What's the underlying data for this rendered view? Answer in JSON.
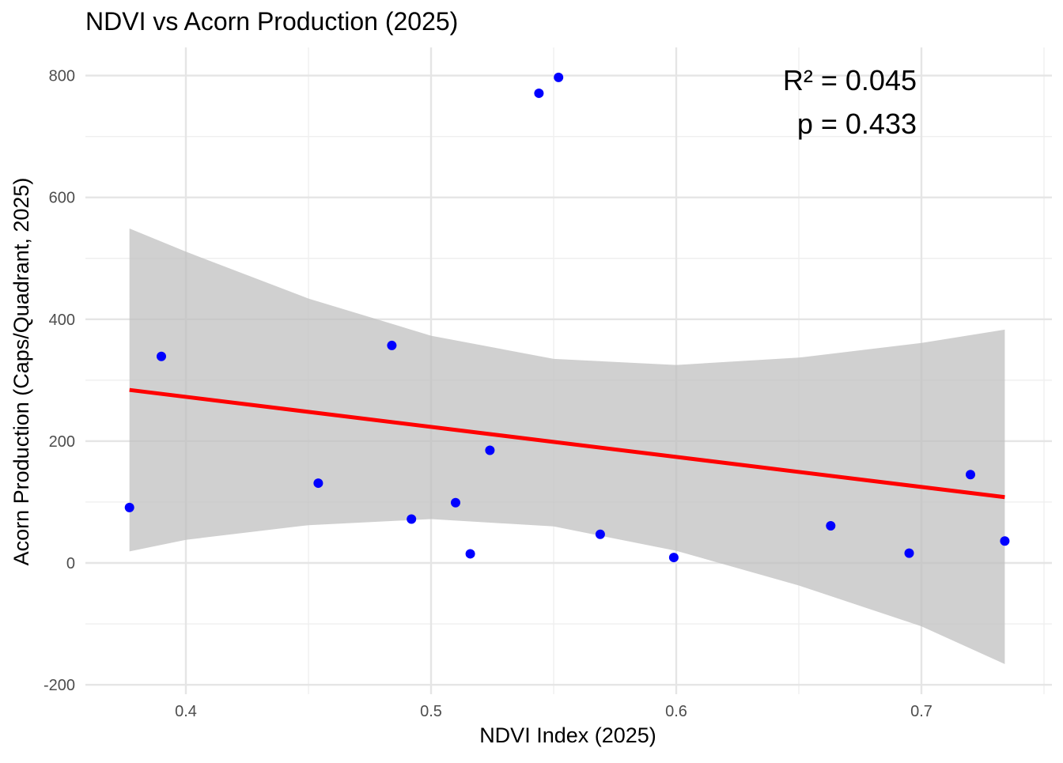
{
  "chart_data": {
    "type": "scatter",
    "title": "NDVI vs Acorn Production (2025)",
    "xlabel": "NDVI Index (2025)",
    "ylabel": "Acorn Production (Caps/Quadrant, 2025)",
    "xlim": [
      0.36,
      0.75
    ],
    "ylim": [
      -200,
      840
    ],
    "x_ticks": [
      0.4,
      0.5,
      0.6,
      0.7
    ],
    "x_tick_labels": [
      "0.4",
      "0.5",
      "0.6",
      "0.7"
    ],
    "y_ticks": [
      -200,
      0,
      200,
      400,
      600,
      800
    ],
    "y_tick_labels": [
      "-200",
      "0",
      "200",
      "400",
      "600",
      "800"
    ],
    "grid": true,
    "points": [
      {
        "x": 0.377,
        "y": 91
      },
      {
        "x": 0.39,
        "y": 339
      },
      {
        "x": 0.454,
        "y": 131
      },
      {
        "x": 0.484,
        "y": 357
      },
      {
        "x": 0.492,
        "y": 72
      },
      {
        "x": 0.51,
        "y": 99
      },
      {
        "x": 0.516,
        "y": 15
      },
      {
        "x": 0.524,
        "y": 185
      },
      {
        "x": 0.544,
        "y": 771
      },
      {
        "x": 0.552,
        "y": 797
      },
      {
        "x": 0.569,
        "y": 47
      },
      {
        "x": 0.599,
        "y": 9
      },
      {
        "x": 0.663,
        "y": 61
      },
      {
        "x": 0.695,
        "y": 16
      },
      {
        "x": 0.72,
        "y": 145
      },
      {
        "x": 0.734,
        "y": 36
      }
    ],
    "point_color": "#0000ff",
    "fit_line": {
      "x": [
        0.377,
        0.734
      ],
      "y": [
        284,
        108
      ],
      "color": "#ff0000"
    },
    "confidence_band": {
      "x": [
        0.377,
        0.4,
        0.45,
        0.5,
        0.55,
        0.6,
        0.65,
        0.7,
        0.734
      ],
      "upper": [
        549,
        511,
        434,
        373,
        335,
        325,
        337,
        361,
        383
      ],
      "lower": [
        19,
        38,
        62,
        72,
        60,
        20,
        -37,
        -104,
        -166
      ],
      "color": "#bebebe"
    },
    "annotations": {
      "r2": "R² = 0.045",
      "p": "p = 0.433"
    }
  }
}
